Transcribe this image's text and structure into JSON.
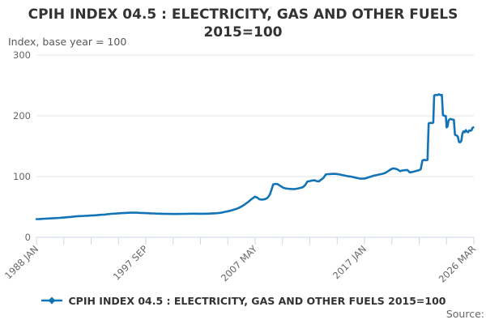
{
  "title": {
    "line1": "CPIH INDEX 04.5 : ELECTRICITY, GAS AND OTHER FUELS",
    "line2": "2015=100"
  },
  "subtitle": "Index, base year = 100",
  "source_label": "Source:",
  "legend": {
    "label": "CPIH INDEX 04.5 : ELECTRICITY, GAS AND OTHER FUELS 2015=100"
  },
  "colors": {
    "series": "#1274b6",
    "grid": "#e6e6e6",
    "axis": "#ccd6eb",
    "title_text": "#333333",
    "axis_text": "#666666"
  },
  "chart_data": {
    "type": "line",
    "title": "CPIH INDEX 04.5 : ELECTRICITY, GAS AND OTHER FUELS 2015=100",
    "subtitle": "Index, base year = 100",
    "grid": "horizontal",
    "legend_position": "bottom",
    "x_axis": {
      "min": 1988.0,
      "max": 2026.25,
      "tick_count": 17,
      "label_every_n_ticks": 4,
      "tick_labels": [
        "1988 JAN",
        "1997 SEP",
        "2007 MAY",
        "2017 JAN",
        "2026 MAR"
      ],
      "label_rotation_deg": -45
    },
    "y_axis": {
      "min": 0,
      "max": 300,
      "ticks": [
        0,
        100,
        200,
        300
      ]
    },
    "series": [
      {
        "name": "CPIH INDEX 04.5 : ELECTRICITY, GAS AND OTHER FUELS 2015=100",
        "color": "#1274b6",
        "points": [
          [
            1988.0,
            30
          ],
          [
            1988.25,
            30.2
          ],
          [
            1988.5,
            30.4
          ],
          [
            1988.75,
            30.7
          ],
          [
            1989.0,
            31
          ],
          [
            1989.25,
            31.2
          ],
          [
            1989.5,
            31.4
          ],
          [
            1989.75,
            31.7
          ],
          [
            1990.0,
            32
          ],
          [
            1990.25,
            32.4
          ],
          [
            1990.5,
            32.8
          ],
          [
            1990.75,
            33.2
          ],
          [
            1991.0,
            33.6
          ],
          [
            1991.25,
            34.2
          ],
          [
            1991.5,
            34.6
          ],
          [
            1991.75,
            34.9
          ],
          [
            1992.0,
            35.1
          ],
          [
            1992.25,
            35.3
          ],
          [
            1992.5,
            35.6
          ],
          [
            1992.75,
            35.9
          ],
          [
            1993.0,
            36.1
          ],
          [
            1993.25,
            36.4
          ],
          [
            1993.5,
            36.9
          ],
          [
            1993.75,
            37.2
          ],
          [
            1994.0,
            37.4
          ],
          [
            1994.25,
            38.1
          ],
          [
            1994.5,
            38.7
          ],
          [
            1994.75,
            39
          ],
          [
            1995.0,
            39.2
          ],
          [
            1995.25,
            39.6
          ],
          [
            1995.5,
            39.9
          ],
          [
            1995.75,
            40.1
          ],
          [
            1996.0,
            40.4
          ],
          [
            1996.25,
            40.5
          ],
          [
            1996.5,
            40.6
          ],
          [
            1996.75,
            40.5
          ],
          [
            1997.0,
            40.3
          ],
          [
            1997.25,
            40.1
          ],
          [
            1997.5,
            39.9
          ],
          [
            1997.75,
            39.7
          ],
          [
            1998.0,
            39.5
          ],
          [
            1998.25,
            39.3
          ],
          [
            1998.5,
            39.1
          ],
          [
            1998.75,
            38.9
          ],
          [
            1999.0,
            38.8
          ],
          [
            1999.25,
            38.7
          ],
          [
            1999.5,
            38.6
          ],
          [
            1999.75,
            38.5
          ],
          [
            2000.0,
            38.4
          ],
          [
            2000.25,
            38.4
          ],
          [
            2000.5,
            38.5
          ],
          [
            2000.75,
            38.6
          ],
          [
            2001.0,
            38.7
          ],
          [
            2001.25,
            38.8
          ],
          [
            2001.5,
            38.9
          ],
          [
            2001.75,
            38.9
          ],
          [
            2002.0,
            38.9
          ],
          [
            2002.25,
            38.8
          ],
          [
            2002.5,
            38.8
          ],
          [
            2002.75,
            38.9
          ],
          [
            2003.0,
            39
          ],
          [
            2003.25,
            39.2
          ],
          [
            2003.5,
            39.4
          ],
          [
            2003.75,
            39.7
          ],
          [
            2004.0,
            40.2
          ],
          [
            2004.25,
            41
          ],
          [
            2004.5,
            42
          ],
          [
            2004.75,
            43
          ],
          [
            2005.0,
            44
          ],
          [
            2005.25,
            45.5
          ],
          [
            2005.5,
            47
          ],
          [
            2005.75,
            49
          ],
          [
            2006.0,
            51.5
          ],
          [
            2006.25,
            54.5
          ],
          [
            2006.5,
            58
          ],
          [
            2006.75,
            62
          ],
          [
            2007.0,
            65.5
          ],
          [
            2007.1,
            67
          ],
          [
            2007.3,
            65.5
          ],
          [
            2007.5,
            62.5
          ],
          [
            2007.75,
            62
          ],
          [
            2008.0,
            63
          ],
          [
            2008.2,
            65
          ],
          [
            2008.4,
            70
          ],
          [
            2008.55,
            78
          ],
          [
            2008.7,
            87
          ],
          [
            2008.9,
            88
          ],
          [
            2009.1,
            87.5
          ],
          [
            2009.3,
            85
          ],
          [
            2009.6,
            81.5
          ],
          [
            2009.8,
            80.5
          ],
          [
            2010.0,
            80
          ],
          [
            2010.3,
            79.6
          ],
          [
            2010.6,
            79.4
          ],
          [
            2010.9,
            80.5
          ],
          [
            2011.1,
            81.5
          ],
          [
            2011.3,
            82.5
          ],
          [
            2011.5,
            86
          ],
          [
            2011.7,
            92
          ],
          [
            2011.9,
            92.5
          ],
          [
            2012.1,
            93.5
          ],
          [
            2012.3,
            94
          ],
          [
            2012.5,
            92.5
          ],
          [
            2012.7,
            92
          ],
          [
            2012.9,
            95
          ],
          [
            2013.1,
            98
          ],
          [
            2013.3,
            103.5
          ],
          [
            2013.5,
            104
          ],
          [
            2013.75,
            104.2
          ],
          [
            2014.0,
            104.5
          ],
          [
            2014.25,
            104.3
          ],
          [
            2014.5,
            103.5
          ],
          [
            2014.75,
            102.5
          ],
          [
            2015.0,
            101.5
          ],
          [
            2015.25,
            100.5
          ],
          [
            2015.5,
            100
          ],
          [
            2015.75,
            99
          ],
          [
            2016.0,
            97.8
          ],
          [
            2016.25,
            96.8
          ],
          [
            2016.5,
            96.5
          ],
          [
            2016.75,
            97
          ],
          [
            2017.0,
            98.5
          ],
          [
            2017.25,
            100
          ],
          [
            2017.5,
            101.5
          ],
          [
            2017.75,
            102.5
          ],
          [
            2018.0,
            103.5
          ],
          [
            2018.25,
            104.5
          ],
          [
            2018.5,
            106
          ],
          [
            2018.75,
            109
          ],
          [
            2019.0,
            112
          ],
          [
            2019.2,
            113.5
          ],
          [
            2019.4,
            113
          ],
          [
            2019.6,
            111.5
          ],
          [
            2019.8,
            109
          ],
          [
            2020.0,
            110
          ],
          [
            2020.2,
            110.5
          ],
          [
            2020.45,
            110.8
          ],
          [
            2020.65,
            107
          ],
          [
            2020.85,
            107.5
          ],
          [
            2021.05,
            108.5
          ],
          [
            2021.25,
            109.5
          ],
          [
            2021.45,
            110.5
          ],
          [
            2021.6,
            112
          ],
          [
            2021.75,
            126.5
          ],
          [
            2021.9,
            127.5
          ],
          [
            2022.05,
            127
          ],
          [
            2022.2,
            127.5
          ],
          [
            2022.3,
            187.5
          ],
          [
            2022.45,
            188.5
          ],
          [
            2022.6,
            188
          ],
          [
            2022.7,
            189
          ],
          [
            2022.78,
            233.5
          ],
          [
            2022.9,
            234.5
          ],
          [
            2023.05,
            234
          ],
          [
            2023.2,
            235.5
          ],
          [
            2023.35,
            234
          ],
          [
            2023.45,
            234.5
          ],
          [
            2023.55,
            201
          ],
          [
            2023.7,
            200
          ],
          [
            2023.8,
            199.5
          ],
          [
            2023.87,
            181
          ],
          [
            2023.95,
            182.5
          ],
          [
            2024.05,
            193
          ],
          [
            2024.2,
            195
          ],
          [
            2024.35,
            194
          ],
          [
            2024.5,
            193.5
          ],
          [
            2024.6,
            169
          ],
          [
            2024.75,
            167.5
          ],
          [
            2024.85,
            166
          ],
          [
            2024.95,
            157
          ],
          [
            2025.05,
            156.5
          ],
          [
            2025.15,
            158.5
          ],
          [
            2025.25,
            171
          ],
          [
            2025.35,
            174.5
          ],
          [
            2025.45,
            173
          ],
          [
            2025.55,
            176.5
          ],
          [
            2025.65,
            174
          ],
          [
            2025.75,
            173
          ],
          [
            2025.85,
            176
          ],
          [
            2025.95,
            175.5
          ],
          [
            2026.05,
            176.5
          ],
          [
            2026.12,
            180
          ],
          [
            2026.2,
            181
          ]
        ]
      }
    ]
  }
}
